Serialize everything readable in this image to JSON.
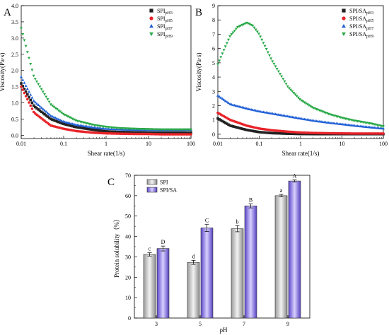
{
  "chart_data": [
    {
      "panel": "A",
      "type": "scatter",
      "xscale": "log",
      "xlabel": "Shear rate(1/s)",
      "ylabel": "Viscosity(Pa·s)",
      "xlim": [
        0.01,
        100
      ],
      "ylim": [
        -0.1,
        4.0
      ],
      "xticks": [
        "0.01",
        "0.1",
        "1",
        "10",
        "100"
      ],
      "yticks": [
        "0.0",
        "0.5",
        "1.0",
        "1.5",
        "2.0",
        "2.5",
        "3.0",
        "3.5",
        "4.0"
      ],
      "legend_position": "top-right",
      "series": [
        {
          "name": "SPI",
          "sub": "pH3",
          "marker": "square",
          "color": "#222222",
          "x": [
            0.01,
            0.02,
            0.05,
            0.1,
            0.2,
            0.5,
            1,
            2,
            5,
            10,
            20,
            50,
            100
          ],
          "y": [
            1.6,
            0.9,
            0.5,
            0.35,
            0.25,
            0.17,
            0.12,
            0.1,
            0.09,
            0.08,
            0.08,
            0.08,
            0.08
          ]
        },
        {
          "name": "SPI",
          "sub": "pH5",
          "marker": "circle",
          "color": "#e8242a",
          "x": [
            0.01,
            0.02,
            0.05,
            0.1,
            0.2,
            0.5,
            1,
            2,
            5,
            10,
            20,
            50,
            100
          ],
          "y": [
            1.5,
            0.7,
            0.3,
            0.2,
            0.13,
            0.08,
            0.06,
            0.05,
            0.04,
            0.04,
            0.03,
            0.03,
            0.03
          ]
        },
        {
          "name": "SPI",
          "sub": "pH7",
          "marker": "triangle",
          "color": "#1f5fd6",
          "x": [
            0.01,
            0.02,
            0.05,
            0.1,
            0.2,
            0.5,
            1,
            2,
            5,
            10,
            20,
            50,
            100
          ],
          "y": [
            1.8,
            1.05,
            0.6,
            0.42,
            0.32,
            0.24,
            0.2,
            0.18,
            0.17,
            0.16,
            0.16,
            0.16,
            0.17
          ]
        },
        {
          "name": "SPI",
          "sub": "pH9",
          "marker": "triangle-down",
          "color": "#27a845",
          "x": [
            0.01,
            0.02,
            0.05,
            0.1,
            0.2,
            0.5,
            1,
            2,
            5,
            10,
            20,
            50,
            100
          ],
          "y": [
            3.3,
            1.8,
            0.95,
            0.65,
            0.45,
            0.32,
            0.26,
            0.22,
            0.2,
            0.19,
            0.18,
            0.18,
            0.18
          ]
        }
      ]
    },
    {
      "panel": "B",
      "type": "scatter",
      "xscale": "log",
      "xlabel": "Shear rate(1/s)",
      "ylabel": "Viscosity(Pa·s)",
      "xlim": [
        0.01,
        100
      ],
      "ylim": [
        -0.3,
        9.0
      ],
      "xticks": [
        "0.01",
        "0.1",
        "1",
        "10",
        "100"
      ],
      "yticks": [
        "0",
        "1",
        "2",
        "3",
        "4",
        "5",
        "6",
        "7",
        "8",
        "9"
      ],
      "legend_position": "top-right",
      "series": [
        {
          "name": "SPI/SA",
          "sub": "pH3",
          "marker": "square",
          "color": "#222222",
          "x": [
            0.01,
            0.02,
            0.05,
            0.1,
            0.2,
            0.5,
            1,
            2,
            5,
            10,
            20,
            50,
            100
          ],
          "y": [
            1.1,
            0.6,
            0.3,
            0.15,
            0.08,
            0.04,
            0.02,
            0.01,
            0.01,
            0.01,
            0.01,
            0.01,
            0.01
          ]
        },
        {
          "name": "SPI/SA",
          "sub": "pH5",
          "marker": "circle",
          "color": "#e8242a",
          "x": [
            0.01,
            0.02,
            0.05,
            0.1,
            0.2,
            0.5,
            1,
            2,
            5,
            10,
            20,
            50,
            100
          ],
          "y": [
            1.5,
            1.0,
            0.6,
            0.4,
            0.28,
            0.18,
            0.12,
            0.09,
            0.07,
            0.06,
            0.05,
            0.05,
            0.05
          ]
        },
        {
          "name": "SPI/SA",
          "sub": "pH7",
          "marker": "triangle",
          "color": "#1f5fd6",
          "x": [
            0.01,
            0.02,
            0.05,
            0.1,
            0.2,
            0.5,
            1,
            2,
            5,
            10,
            20,
            50,
            100
          ],
          "y": [
            2.7,
            2.1,
            1.8,
            1.6,
            1.45,
            1.25,
            1.1,
            0.95,
            0.8,
            0.7,
            0.6,
            0.48,
            0.4
          ]
        },
        {
          "name": "SPI/SA",
          "sub": "pH9",
          "marker": "triangle-down",
          "color": "#27a845",
          "x": [
            0.01,
            0.015,
            0.02,
            0.03,
            0.05,
            0.07,
            0.1,
            0.2,
            0.5,
            1,
            2,
            5,
            10,
            20,
            50,
            100
          ],
          "y": [
            4.9,
            6.1,
            6.9,
            7.5,
            7.8,
            7.6,
            7.0,
            5.2,
            3.3,
            2.4,
            1.85,
            1.4,
            1.15,
            0.95,
            0.75,
            0.55
          ]
        }
      ]
    },
    {
      "panel": "C",
      "type": "bar",
      "xlabel": "pH",
      "ylabel": "Protein solubility（%）",
      "categories": [
        "3",
        "5",
        "7",
        "9"
      ],
      "ylim": [
        0,
        70
      ],
      "yticks": [
        "0",
        "10",
        "20",
        "30",
        "40",
        "50",
        "60",
        "70"
      ],
      "legend_position": "top-left",
      "series": [
        {
          "name": "SPI",
          "color": "#cfcfcf",
          "values": [
            31.2,
            27.3,
            43.8,
            60.0
          ],
          "errors": [
            0.8,
            1.0,
            1.5,
            0.6
          ],
          "letters": [
            "c",
            "d",
            "b",
            "a"
          ]
        },
        {
          "name": "SPI/SA",
          "color": "#8a79d8",
          "values": [
            34.1,
            44.2,
            55.0,
            67.2
          ],
          "errors": [
            1.2,
            1.8,
            1.0,
            0.5
          ],
          "letters": [
            "D",
            "C",
            "B",
            "A"
          ]
        }
      ]
    }
  ],
  "panels": {
    "a_letter": "A",
    "b_letter": "B",
    "c_letter": "C"
  }
}
